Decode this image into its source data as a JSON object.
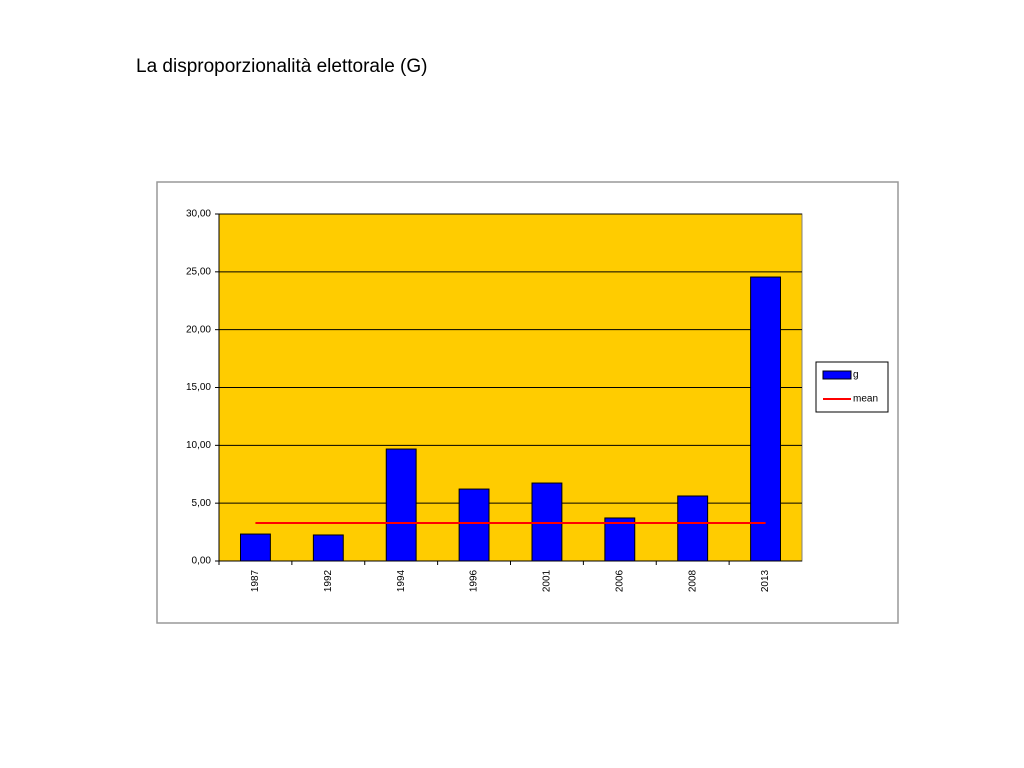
{
  "chart_data": {
    "type": "bar",
    "title": "La disproporzionalità elettorale (G)",
    "categories": [
      "1987",
      "1992",
      "1994",
      "1996",
      "2001",
      "2006",
      "2008",
      "2013"
    ],
    "series": [
      {
        "name": "g",
        "color": "#0000ff",
        "type": "bar",
        "values": [
          2.33,
          2.25,
          9.68,
          6.22,
          6.74,
          3.72,
          5.62,
          24.55
        ]
      },
      {
        "name": "mean",
        "color": "#ff0000",
        "type": "line",
        "values": [
          3.28,
          3.28,
          3.28,
          3.28,
          3.28,
          3.28,
          3.28,
          3.28
        ]
      }
    ],
    "ylim": [
      0,
      30
    ],
    "yticks": [
      {
        "value": 0,
        "label": "0,00"
      },
      {
        "value": 5,
        "label": "5,00"
      },
      {
        "value": 10,
        "label": "10,00"
      },
      {
        "value": 15,
        "label": "15,00"
      },
      {
        "value": 20,
        "label": "20,00"
      },
      {
        "value": 25,
        "label": "25,00"
      },
      {
        "value": 30,
        "label": "30,00"
      }
    ],
    "grid": true,
    "plot_background": "#ffcc00",
    "legend": "right"
  }
}
